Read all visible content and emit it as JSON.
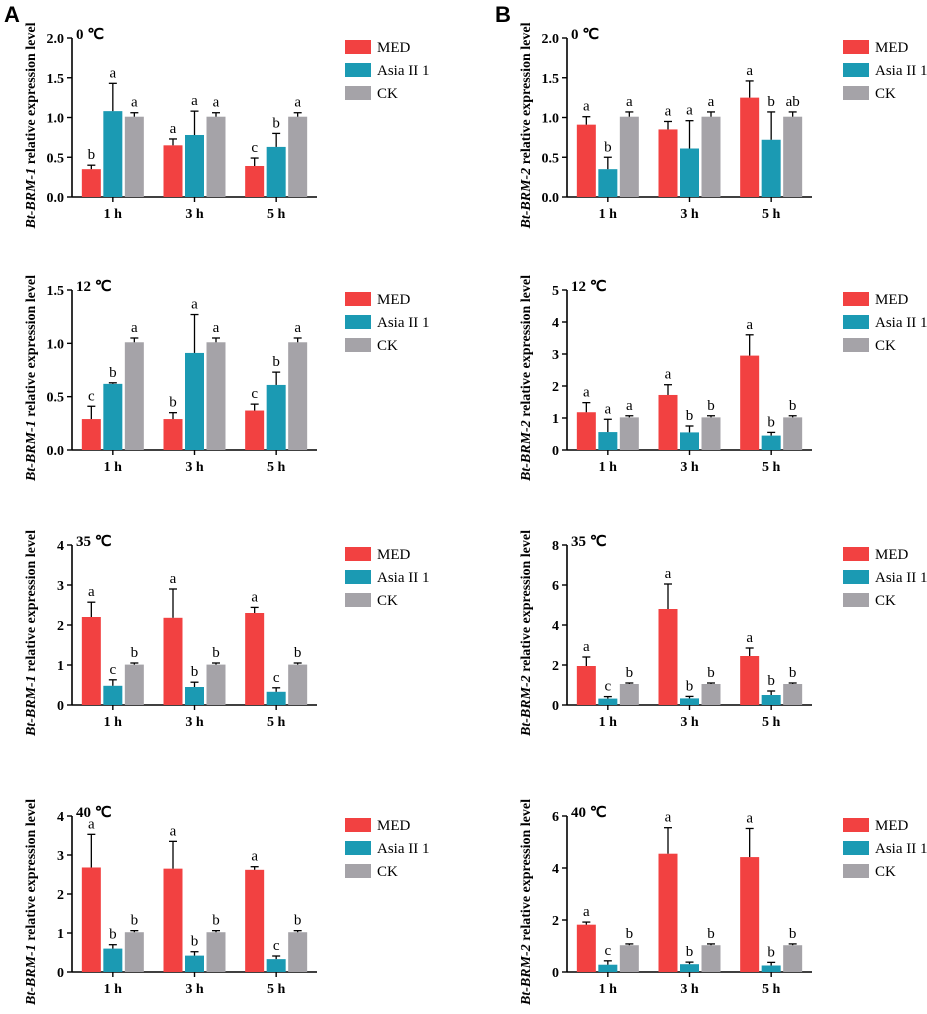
{
  "panel_labels": [
    "A",
    "B"
  ],
  "colors": {
    "MED": "#f24141",
    "Asia II 1": "#1b9ab3",
    "CK": "#a5a3a8"
  },
  "legend": [
    "MED",
    "Asia II 1",
    "CK"
  ],
  "chart_data": [
    {
      "type": "bar",
      "panel": "A",
      "title": "0 ℃",
      "ylabel_italic": "Bt-BRM-1",
      "ylabel_rest": " relative expression level",
      "categories": [
        "1 h",
        "3 h",
        "5 h"
      ],
      "ylim": [
        0,
        2.0
      ],
      "yticks": [
        "0.0",
        "0.5",
        "1.0",
        "1.5",
        "2.0"
      ],
      "series": [
        {
          "name": "MED",
          "values": [
            0.35,
            0.65,
            0.39
          ],
          "errors": [
            0.05,
            0.08,
            0.1
          ],
          "letters": [
            "b",
            "a",
            "c"
          ]
        },
        {
          "name": "Asia II 1",
          "values": [
            1.08,
            0.78,
            0.63
          ],
          "errors": [
            0.35,
            0.3,
            0.17
          ],
          "letters": [
            "a",
            "a",
            "b"
          ]
        },
        {
          "name": "CK",
          "values": [
            1.01,
            1.01,
            1.01
          ],
          "errors": [
            0.05,
            0.05,
            0.05
          ],
          "letters": [
            "a",
            "a",
            "a"
          ]
        }
      ]
    },
    {
      "type": "bar",
      "panel": "B",
      "title": "0 ℃",
      "ylabel_italic": "Bt-BRM-2",
      "ylabel_rest": " relative expression level",
      "categories": [
        "1 h",
        "3 h",
        "5 h"
      ],
      "ylim": [
        0,
        2.0
      ],
      "yticks": [
        "0.0",
        "0.5",
        "1.0",
        "1.5",
        "2.0"
      ],
      "series": [
        {
          "name": "MED",
          "values": [
            0.91,
            0.85,
            1.25
          ],
          "errors": [
            0.1,
            0.1,
            0.21
          ],
          "letters": [
            "a",
            "a",
            "a"
          ]
        },
        {
          "name": "Asia II 1",
          "values": [
            0.35,
            0.61,
            0.72
          ],
          "errors": [
            0.15,
            0.35,
            0.35
          ],
          "letters": [
            "b",
            "a",
            "b"
          ]
        },
        {
          "name": "CK",
          "values": [
            1.01,
            1.01,
            1.01
          ],
          "errors": [
            0.06,
            0.06,
            0.06
          ],
          "letters": [
            "a",
            "a",
            "ab"
          ]
        }
      ]
    },
    {
      "type": "bar",
      "panel": "A",
      "title": "12 ℃",
      "ylabel_italic": "Bt-BRM-1",
      "ylabel_rest": " relative expression level",
      "categories": [
        "1 h",
        "3 h",
        "5 h"
      ],
      "ylim": [
        0,
        1.5
      ],
      "yticks": [
        "0.0",
        "0.5",
        "1.0",
        "1.5"
      ],
      "series": [
        {
          "name": "MED",
          "values": [
            0.29,
            0.29,
            0.37
          ],
          "errors": [
            0.12,
            0.06,
            0.06
          ],
          "letters": [
            "c",
            "b",
            "c"
          ]
        },
        {
          "name": "Asia II 1",
          "values": [
            0.62,
            0.91,
            0.61
          ],
          "errors": [
            0.01,
            0.36,
            0.12
          ],
          "letters": [
            "b",
            "a",
            "b"
          ]
        },
        {
          "name": "CK",
          "values": [
            1.01,
            1.01,
            1.01
          ],
          "errors": [
            0.04,
            0.04,
            0.04
          ],
          "letters": [
            "a",
            "a",
            "a"
          ]
        }
      ]
    },
    {
      "type": "bar",
      "panel": "B",
      "title": "12 ℃",
      "ylabel_italic": "Bt-BRM-2",
      "ylabel_rest": " relative expression level",
      "categories": [
        "1 h",
        "3 h",
        "5 h"
      ],
      "ylim": [
        0,
        5
      ],
      "yticks": [
        "0",
        "1",
        "2",
        "3",
        "4",
        "5"
      ],
      "series": [
        {
          "name": "MED",
          "values": [
            1.18,
            1.72,
            2.95
          ],
          "errors": [
            0.3,
            0.32,
            0.65
          ],
          "letters": [
            "a",
            "a",
            "a"
          ]
        },
        {
          "name": "Asia II 1",
          "values": [
            0.56,
            0.55,
            0.45
          ],
          "errors": [
            0.4,
            0.2,
            0.1
          ],
          "letters": [
            "a",
            "b",
            "b"
          ]
        },
        {
          "name": "CK",
          "values": [
            1.02,
            1.02,
            1.02
          ],
          "errors": [
            0.05,
            0.05,
            0.05
          ],
          "letters": [
            "a",
            "b",
            "b"
          ]
        }
      ]
    },
    {
      "type": "bar",
      "panel": "A",
      "title": "35 ℃",
      "ylabel_italic": "Bt-BRM-1",
      "ylabel_rest": " relative expression level",
      "categories": [
        "1 h",
        "3 h",
        "5 h"
      ],
      "ylim": [
        0,
        4
      ],
      "yticks": [
        "0",
        "1",
        "2",
        "3",
        "4"
      ],
      "series": [
        {
          "name": "MED",
          "values": [
            2.2,
            2.18,
            2.3
          ],
          "errors": [
            0.37,
            0.72,
            0.14
          ],
          "letters": [
            "a",
            "a",
            "a"
          ]
        },
        {
          "name": "Asia II 1",
          "values": [
            0.48,
            0.45,
            0.33
          ],
          "errors": [
            0.15,
            0.12,
            0.1
          ],
          "letters": [
            "c",
            "b",
            "c"
          ]
        },
        {
          "name": "CK",
          "values": [
            1.01,
            1.01,
            1.01
          ],
          "errors": [
            0.04,
            0.04,
            0.04
          ],
          "letters": [
            "b",
            "b",
            "b"
          ]
        }
      ]
    },
    {
      "type": "bar",
      "panel": "B",
      "title": "35 ℃",
      "ylabel_italic": "Bt-BRM-2",
      "ylabel_rest": " relative expression level",
      "categories": [
        "1 h",
        "3 h",
        "5 h"
      ],
      "ylim": [
        0,
        8
      ],
      "yticks": [
        "0",
        "2",
        "4",
        "6",
        "8"
      ],
      "series": [
        {
          "name": "MED",
          "values": [
            1.95,
            4.8,
            2.45
          ],
          "errors": [
            0.45,
            1.25,
            0.4
          ],
          "letters": [
            "a",
            "a",
            "a"
          ]
        },
        {
          "name": "Asia II 1",
          "values": [
            0.32,
            0.33,
            0.5
          ],
          "errors": [
            0.1,
            0.1,
            0.2
          ],
          "letters": [
            "c",
            "b",
            "b"
          ]
        },
        {
          "name": "CK",
          "values": [
            1.05,
            1.05,
            1.05
          ],
          "errors": [
            0.05,
            0.05,
            0.05
          ],
          "letters": [
            "b",
            "b",
            "b"
          ]
        }
      ]
    },
    {
      "type": "bar",
      "panel": "A",
      "title": "40 ℃",
      "ylabel_italic": "Bt-BRM-1",
      "ylabel_rest": " relative expression level",
      "categories": [
        "1 h",
        "3 h",
        "5 h"
      ],
      "ylim": [
        0,
        4
      ],
      "yticks": [
        "0",
        "1",
        "2",
        "3",
        "4"
      ],
      "series": [
        {
          "name": "MED",
          "values": [
            2.68,
            2.65,
            2.62
          ],
          "errors": [
            0.85,
            0.7,
            0.08
          ],
          "letters": [
            "a",
            "a",
            "a"
          ]
        },
        {
          "name": "Asia II 1",
          "values": [
            0.6,
            0.42,
            0.33
          ],
          "errors": [
            0.1,
            0.1,
            0.08
          ],
          "letters": [
            "b",
            "b",
            "c"
          ]
        },
        {
          "name": "CK",
          "values": [
            1.02,
            1.02,
            1.02
          ],
          "errors": [
            0.04,
            0.04,
            0.04
          ],
          "letters": [
            "b",
            "b",
            "b"
          ]
        }
      ]
    },
    {
      "type": "bar",
      "panel": "B",
      "title": "40 ℃",
      "ylabel_italic": "Bt-BRM-2",
      "ylabel_rest": " relative expression level",
      "categories": [
        "1 h",
        "3 h",
        "5 h"
      ],
      "ylim": [
        0,
        6
      ],
      "yticks": [
        "0",
        "2",
        "4",
        "6"
      ],
      "series": [
        {
          "name": "MED",
          "values": [
            1.82,
            4.55,
            4.42
          ],
          "errors": [
            0.1,
            1.0,
            1.1
          ],
          "letters": [
            "a",
            "a",
            "a"
          ]
        },
        {
          "name": "Asia II 1",
          "values": [
            0.28,
            0.3,
            0.25
          ],
          "errors": [
            0.15,
            0.08,
            0.12
          ],
          "letters": [
            "c",
            "b",
            "b"
          ]
        },
        {
          "name": "CK",
          "values": [
            1.03,
            1.03,
            1.03
          ],
          "errors": [
            0.05,
            0.05,
            0.05
          ],
          "letters": [
            "b",
            "b",
            "b"
          ]
        }
      ]
    }
  ]
}
